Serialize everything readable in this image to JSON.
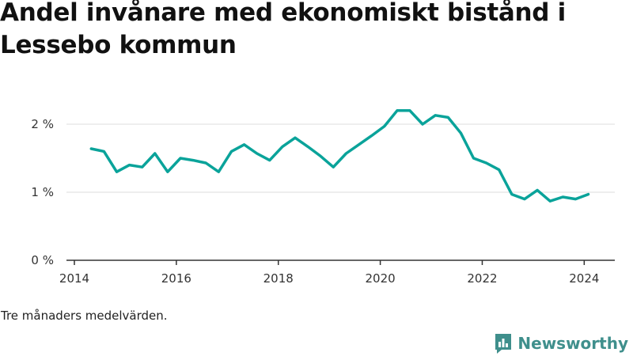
{
  "title": "Andel invånare med ekonomiskt bistånd i Lessebo kommun",
  "caption": "Tre månaders medelvärden.",
  "brand": "Newsworthy",
  "colors": {
    "line": "#0aa39a",
    "grid": "#dddddd",
    "axis": "#333333",
    "brand": "#3f8f8c"
  },
  "chart_data": {
    "type": "line",
    "title": "Andel invånare med ekonomiskt bistånd i Lessebo kommun",
    "xlabel": "",
    "ylabel": "",
    "xlim": [
      2014,
      2024.6
    ],
    "ylim": [
      0,
      2.4
    ],
    "x_ticks": [
      2014,
      2016,
      2018,
      2020,
      2022,
      2024
    ],
    "x_tick_labels": [
      "2014",
      "2016",
      "2018",
      "2020",
      "2022",
      "2024"
    ],
    "y_ticks": [
      0,
      1,
      2
    ],
    "y_tick_labels": [
      "0 %",
      "1 %",
      "2 %"
    ],
    "grid": true,
    "legend": "none",
    "series": [
      {
        "x": [
          2014.33,
          2014.58,
          2014.83,
          2015.08,
          2015.33,
          2015.58,
          2015.83,
          2016.08,
          2016.33,
          2016.58,
          2016.83,
          2017.08,
          2017.33,
          2017.58,
          2017.83,
          2018.08,
          2018.33,
          2018.58,
          2018.83,
          2019.08,
          2019.33,
          2019.58,
          2019.83,
          2020.08,
          2020.33,
          2020.58,
          2020.83,
          2021.08,
          2021.33,
          2021.58,
          2021.83,
          2022.08,
          2022.33,
          2022.58,
          2022.83,
          2023.08,
          2023.33,
          2023.58,
          2023.83,
          2024.08
        ],
        "values": [
          1.64,
          1.6,
          1.3,
          1.4,
          1.37,
          1.57,
          1.3,
          1.5,
          1.47,
          1.43,
          1.3,
          1.6,
          1.7,
          1.57,
          1.47,
          1.67,
          1.8,
          1.67,
          1.53,
          1.37,
          1.57,
          1.7,
          1.83,
          1.97,
          2.2,
          2.2,
          2.0,
          2.13,
          2.1,
          1.87,
          1.5,
          1.43,
          1.33,
          0.97,
          0.9,
          1.03,
          0.87,
          0.93,
          0.9,
          0.97
        ]
      }
    ]
  }
}
